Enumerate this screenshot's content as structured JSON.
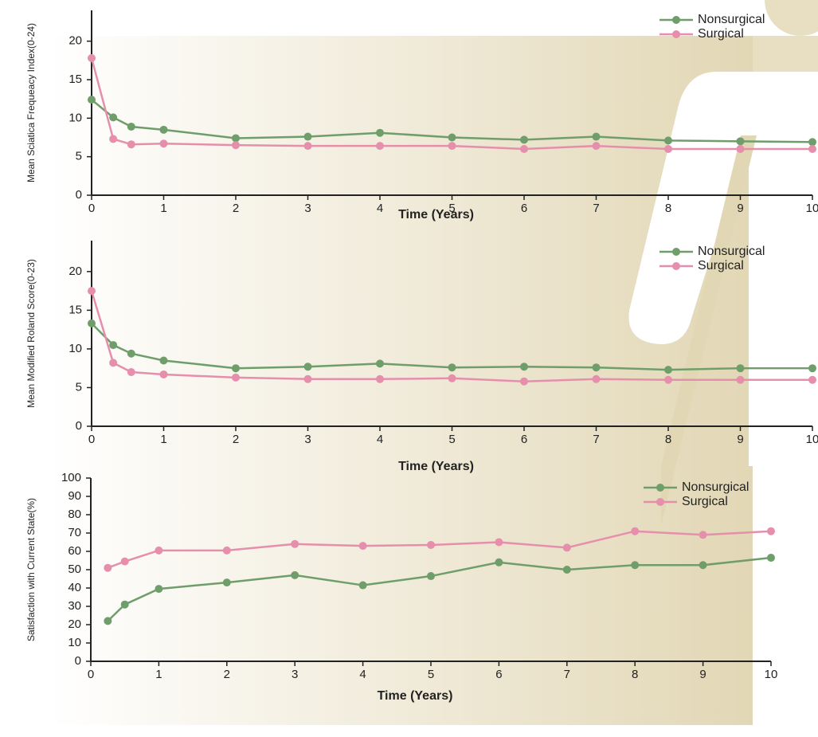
{
  "chart_data": [
    {
      "type": "line",
      "x_label": "Time (Years)",
      "y_label": "Mean Sciatica Frequeacy Index(0-24)",
      "xlim": [
        0,
        10
      ],
      "xticks": [
        0,
        1,
        2,
        3,
        4,
        5,
        6,
        7,
        8,
        9,
        10
      ],
      "ylim": [
        0,
        24
      ],
      "yticks": [
        0,
        5,
        10,
        15,
        20
      ],
      "legend": "upper right",
      "series": [
        {
          "name": "Nonsurgical",
          "color": "#6f9e6b",
          "x": [
            0,
            0.3,
            0.55,
            1,
            2,
            3,
            4,
            5,
            6,
            7,
            8,
            9,
            10
          ],
          "values": [
            12.4,
            10.1,
            8.9,
            8.5,
            7.4,
            7.6,
            8.1,
            7.5,
            7.2,
            7.6,
            7.1,
            7.0,
            6.9
          ]
        },
        {
          "name": "Surgical",
          "color": "#e58fac",
          "x": [
            0,
            0.3,
            0.55,
            1,
            2,
            3,
            4,
            5,
            6,
            7,
            8,
            9,
            10
          ],
          "values": [
            17.8,
            7.3,
            6.6,
            6.7,
            6.5,
            6.4,
            6.4,
            6.4,
            6.0,
            6.4,
            6.0,
            6.0,
            6.0
          ]
        }
      ]
    },
    {
      "type": "line",
      "x_label": "Time (Years)",
      "y_label": "Mean Modified Roland Score(0-23)",
      "xlim": [
        0,
        10
      ],
      "xticks": [
        0,
        1,
        2,
        3,
        4,
        5,
        6,
        7,
        8,
        9,
        10
      ],
      "ylim": [
        0,
        24
      ],
      "yticks": [
        0,
        5,
        10,
        15,
        20
      ],
      "legend": "upper right",
      "series": [
        {
          "name": "Nonsurgical",
          "color": "#6f9e6b",
          "x": [
            0,
            0.3,
            0.55,
            1,
            2,
            3,
            4,
            5,
            6,
            7,
            8,
            9,
            10
          ],
          "values": [
            13.3,
            10.5,
            9.4,
            8.5,
            7.5,
            7.7,
            8.1,
            7.6,
            7.7,
            7.6,
            7.3,
            7.5,
            7.5
          ]
        },
        {
          "name": "Surgical",
          "color": "#e58fac",
          "x": [
            0,
            0.3,
            0.55,
            1,
            2,
            3,
            4,
            5,
            6,
            7,
            8,
            9,
            10
          ],
          "values": [
            17.5,
            8.2,
            7.0,
            6.7,
            6.3,
            6.1,
            6.1,
            6.2,
            5.8,
            6.1,
            6.0,
            6.0,
            6.0
          ]
        }
      ]
    },
    {
      "type": "line",
      "x_label": "Time (Years)",
      "y_label": "Satisfaction with Current State(%)",
      "xlim": [
        0,
        10
      ],
      "xticks": [
        0,
        1,
        2,
        3,
        4,
        5,
        6,
        7,
        8,
        9,
        10
      ],
      "ylim": [
        0,
        100
      ],
      "yticks": [
        0,
        10,
        20,
        30,
        40,
        50,
        60,
        70,
        80,
        90,
        100
      ],
      "legend": "upper right",
      "series": [
        {
          "name": "Nonsurgical",
          "color": "#6f9e6b",
          "x": [
            0.25,
            0.5,
            1,
            2,
            3,
            4,
            5,
            6,
            7,
            8,
            9,
            10
          ],
          "values": [
            22,
            31,
            39.5,
            43,
            47,
            41.5,
            46.5,
            54,
            50,
            52.5,
            52.5,
            56.5
          ]
        },
        {
          "name": "Surgical",
          "color": "#e58fac",
          "x": [
            0.25,
            0.5,
            1,
            2,
            3,
            4,
            5,
            6,
            7,
            8,
            9,
            10
          ],
          "values": [
            51,
            54.5,
            60.5,
            60.5,
            64,
            63,
            63.5,
            65,
            62,
            71,
            69,
            71
          ]
        }
      ]
    }
  ]
}
